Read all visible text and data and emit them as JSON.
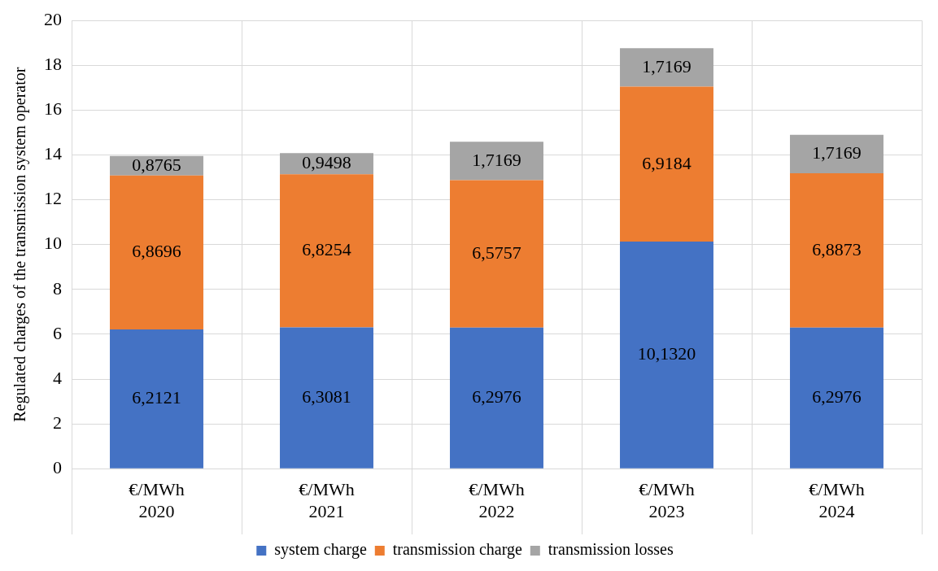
{
  "chart_data": {
    "type": "bar",
    "stacked": true,
    "ylabel": "Regulated charges of the transmission system operator",
    "categories": [
      "€/MWh\n2020",
      "€/MWh\n2021",
      "€/MWh\n2022",
      "€/MWh\n2023",
      "€/MWh\n2024"
    ],
    "series": [
      {
        "name": "system charge",
        "color": "#4472c4",
        "values": [
          6.2121,
          6.3081,
          6.2976,
          10.132,
          6.2976
        ],
        "value_labels": [
          "6,2121",
          "6,3081",
          "6,2976",
          "10,1320",
          "6,2976"
        ]
      },
      {
        "name": "transmission charge",
        "color": "#ed7d31",
        "values": [
          6.8696,
          6.8254,
          6.5757,
          6.9184,
          6.8873
        ],
        "value_labels": [
          "6,8696",
          "6,8254",
          "6,5757",
          "6,9184",
          "6,8873"
        ]
      },
      {
        "name": "transmission losses",
        "color": "#a5a5a5",
        "values": [
          0.8765,
          0.9498,
          1.7169,
          1.7169,
          1.7169
        ],
        "value_labels": [
          "0,8765",
          "0,9498",
          "1,7169",
          "1,7169",
          "1,7169"
        ]
      }
    ],
    "ylim": [
      0,
      20
    ],
    "yticks": [
      0,
      2,
      4,
      6,
      8,
      10,
      12,
      14,
      16,
      18,
      20
    ],
    "grid": true,
    "legend": "bottom"
  }
}
